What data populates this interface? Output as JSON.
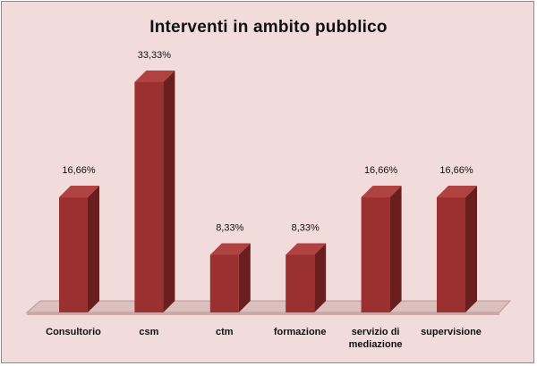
{
  "chart_data": {
    "type": "bar",
    "title": "Interventi in ambito pubblico",
    "categories": [
      "Consultorio",
      "csm",
      "ctm",
      "formazione",
      "servizio di mediazione",
      "supervisione"
    ],
    "category_lines": [
      [
        "Consultorio"
      ],
      [
        "csm"
      ],
      [
        "ctm"
      ],
      [
        "formazione"
      ],
      [
        "servizio di",
        "mediazione"
      ],
      [
        "supervisione"
      ]
    ],
    "values": [
      16.66,
      33.33,
      8.33,
      8.33,
      16.66,
      16.66
    ],
    "value_labels": [
      "16,66%",
      "33,33%",
      "8,33%",
      "8,33%",
      "16,66%",
      "16,66%"
    ],
    "xlabel": "",
    "ylabel": "",
    "ylim": [
      0,
      40
    ],
    "grid": false,
    "legend": "none",
    "style": "3d-column"
  },
  "colors": {
    "background": "#f2dcdb",
    "bar_front": "#9b3030",
    "bar_side": "#6a1e1e",
    "bar_top": "#b04242",
    "floor": "#dcc0bd"
  }
}
